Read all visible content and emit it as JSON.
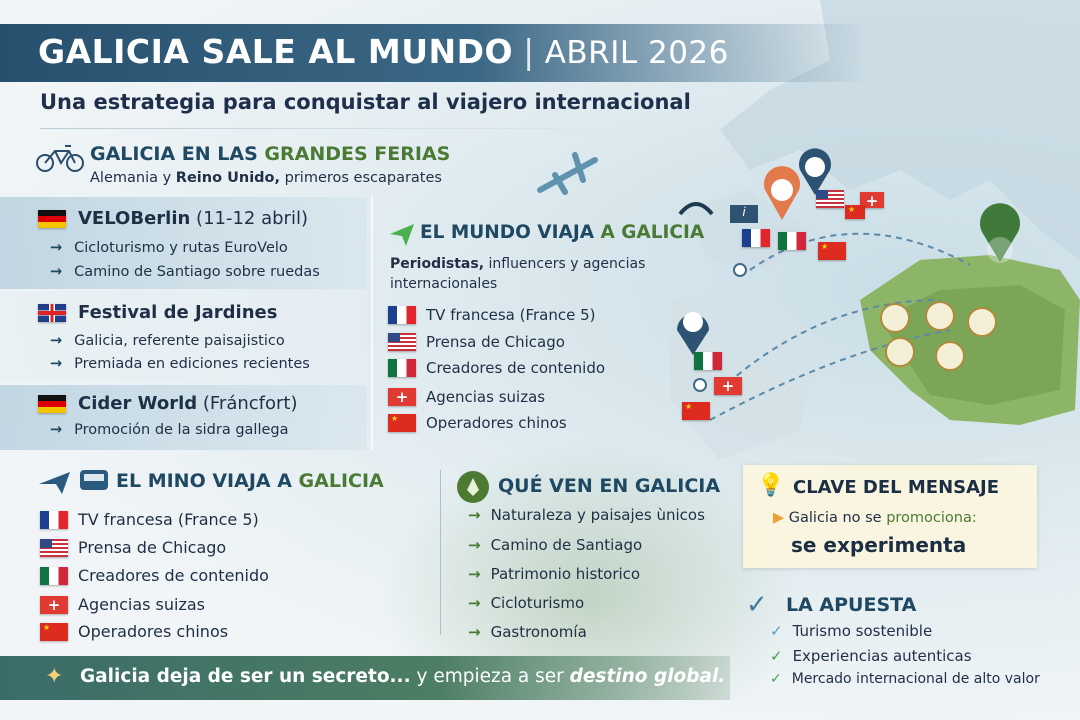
{
  "header": {
    "title": "GALICIA SALE AL MUNDO",
    "date": "ABRIL 2026",
    "subtitle": "Una estrategia para conquistar al viajero internacional"
  },
  "ferias": {
    "title_a": "GALICIA EN LAS ",
    "title_b": "GRANDES FERIAS",
    "desc_a": "Alemania y ",
    "desc_b": "Reino Unido,",
    "desc_c": " primeros escaparates",
    "events": [
      {
        "flag": "de",
        "name": "VELOBerlin",
        "detail": " (11-12 abril)",
        "bullets": [
          "Cicloturismo y rutas EuroVelo",
          "Camino de Santiago sobre ruedas"
        ]
      },
      {
        "flag": "gb",
        "name": "Festival de Jardines",
        "detail": "",
        "bullets": [
          "Galicia, referente paisajistico",
          "Premiada en ediciones recientes"
        ]
      },
      {
        "flag": "de",
        "name": "Cider World",
        "detail": " (Fráncfort)",
        "bullets": [
          "Promoción de la sidra gallega"
        ]
      }
    ]
  },
  "mundo": {
    "title_a": "EL MUNDO VIAJA ",
    "title_b": "A GALICIA",
    "desc_a": "Periodistas,",
    "desc_b": " influencers y agencias internacionales",
    "items": [
      {
        "flag": "fr",
        "text": "TV francesa (France 5)"
      },
      {
        "flag": "us",
        "text": "Prensa de Chicago"
      },
      {
        "flag": "mx",
        "text": "Creadores de contenido"
      },
      {
        "flag": "ch",
        "text": "Agencias suizas"
      },
      {
        "flag": "cn",
        "text": "Operadores chinos"
      }
    ]
  },
  "mino": {
    "title_a": "EL MINO VIAJA A ",
    "title_b": "GALICIA",
    "items": [
      {
        "flag": "fr",
        "text": "TV francesa (France 5)"
      },
      {
        "flag": "us",
        "text": "Prensa de Chicago"
      },
      {
        "flag": "mx",
        "text": "Creadores de contenido"
      },
      {
        "flag": "ch",
        "text": "Agencias suizas"
      },
      {
        "flag": "cn",
        "text": "Operadores chinos"
      }
    ]
  },
  "que_ven": {
    "title": "QUÉ VEN EN GALICIA",
    "items": [
      "Naturaleza y paisajes ùnicos",
      "Camino de Santiago",
      "Patrimonio historico",
      "Cicloturismo",
      "Gastronomía"
    ]
  },
  "clave": {
    "title": "CLAVE DEL MENSAJE",
    "line_a": "Galicia no se ",
    "line_b": "promociona:",
    "line2": "se experimenta"
  },
  "apuesta": {
    "title": "LA APUESTA",
    "items": [
      "Turismo sostenible",
      "Experiencias autenticas",
      "Mercado internacional de alto valor"
    ]
  },
  "footer": {
    "a": "Galicia deja de ser un secreto...",
    "b": " y empieza a ser ",
    "c": "destino global."
  },
  "colors": {
    "navy": "#1f4862",
    "green": "#4b7a34",
    "banner": "#27506e",
    "footer": "#3a6c6a"
  }
}
